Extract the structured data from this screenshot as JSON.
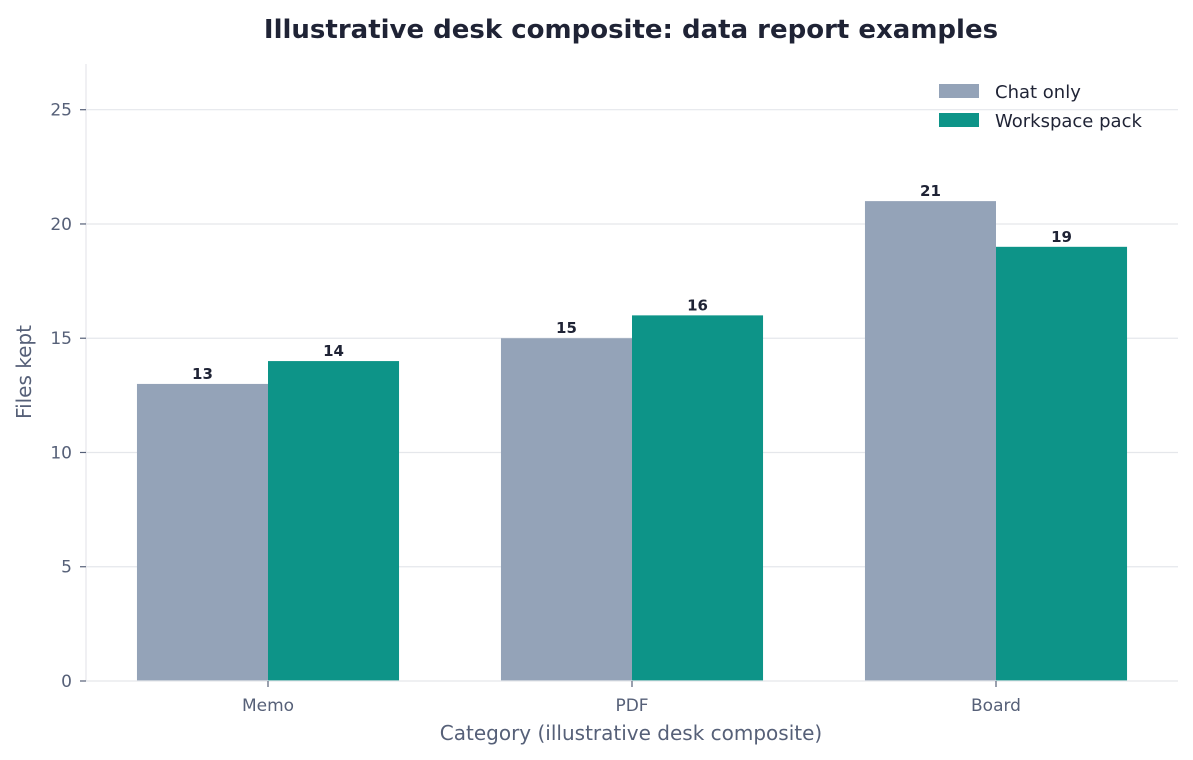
{
  "chart_data": {
    "type": "bar",
    "title": "Illustrative desk composite: data report examples",
    "xlabel": "Category (illustrative desk composite)",
    "ylabel": "Files kept",
    "categories": [
      "Memo",
      "PDF",
      "Board"
    ],
    "series": [
      {
        "name": "Chat only",
        "color": "#94a3b8",
        "values": [
          13,
          15,
          21
        ]
      },
      {
        "name": "Workspace pack",
        "color": "#0d9488",
        "values": [
          14,
          16,
          19
        ]
      }
    ],
    "ylim": [
      0,
      27
    ],
    "yticks": [
      0,
      5,
      10,
      15,
      20,
      25
    ],
    "grid": "horizontal",
    "legend_position": "top-right"
  }
}
